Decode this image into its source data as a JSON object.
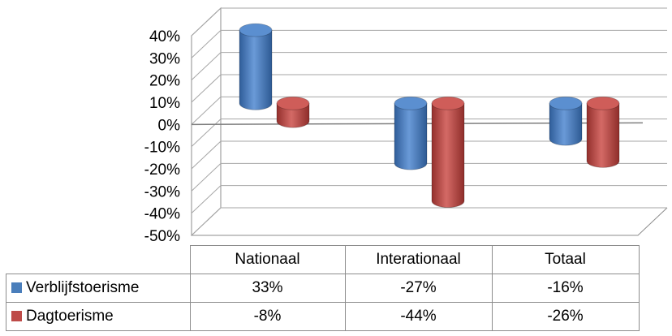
{
  "chart_data": {
    "type": "bar",
    "subtype": "3d-cylinder-column-with-data-table",
    "categories": [
      "Nationaal",
      "Interationaal",
      "Totaal"
    ],
    "series": [
      {
        "name": "Verblijfstoerisme",
        "values": [
          33,
          -27,
          -16
        ],
        "labels": [
          "33%",
          "-27%",
          "-16%"
        ],
        "color": "#4a7ebb"
      },
      {
        "name": "Dagtoerisme",
        "values": [
          -8,
          -44,
          -26
        ],
        "labels": [
          "-8%",
          "-44%",
          "-26%"
        ],
        "color": "#be4b48"
      }
    ],
    "yticks": [
      "40%",
      "30%",
      "20%",
      "10%",
      "0%",
      "-10%",
      "-20%",
      "-30%",
      "-40%",
      "-50%"
    ],
    "ylim": [
      -50,
      40
    ],
    "grid": true,
    "legend": "data-table"
  }
}
